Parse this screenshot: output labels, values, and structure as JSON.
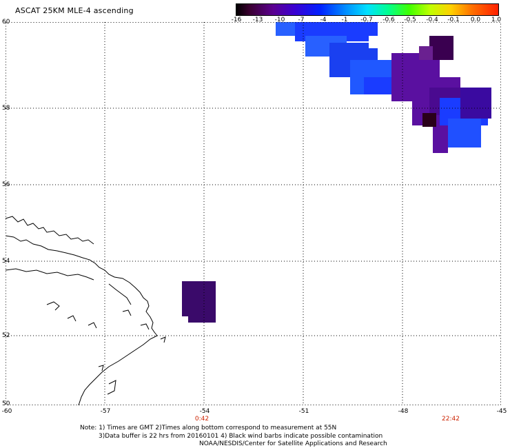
{
  "header": {
    "title": "ASCAT 25KM MLE-4 ascending"
  },
  "legend": {
    "ticks": [
      "-16",
      "-13",
      "-10",
      "-7",
      "-4",
      "-1",
      "-0.7",
      "-0.6",
      "-0.5",
      "-0.4",
      "-0.1",
      "0.0",
      "1.0"
    ]
  },
  "map": {
    "lat_labels": [
      "60",
      "58",
      "56",
      "54",
      "52",
      "50"
    ],
    "lon_labels": [
      "-60",
      "-57",
      "-54",
      "-51",
      "-48",
      "-45"
    ],
    "time_labels": [
      "0:42",
      "22:42"
    ]
  },
  "footer": {
    "note_line1": "Note: 1) Times are GMT 2)Times along bottom correspond to measurement at 55N",
    "note_line2": "3)Data buffer is 22 hrs from 20160101 4) Black wind barbs indicate possible contamination",
    "note_line3": "NOAA/NESDIS/Center for Satellite Applications and Research"
  },
  "colors": {
    "deep_purple": "#3a005a",
    "purple": "#5a10a0",
    "blue": "#1a3cff",
    "mid_blue": "#2860ff",
    "dark_red_purple": "#2a001a"
  }
}
